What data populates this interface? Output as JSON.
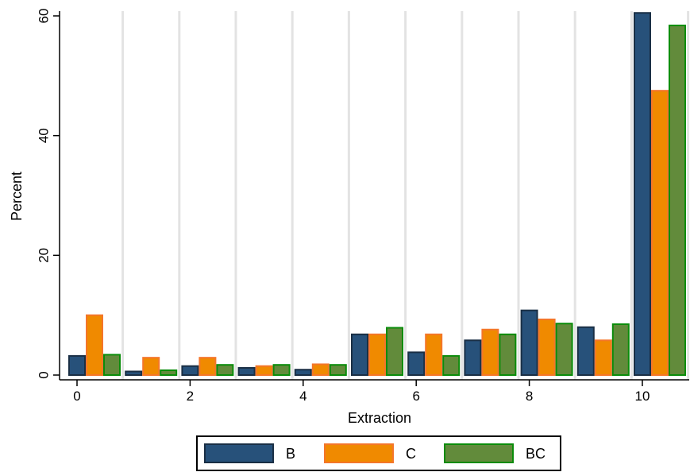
{
  "chart_data": {
    "type": "bar",
    "xlabel": "Extraction",
    "ylabel": "Percent",
    "categories": [
      "0",
      "1",
      "2",
      "3",
      "4",
      "5",
      "6",
      "7",
      "8",
      "9",
      "10"
    ],
    "x_ticks": [
      "0",
      "2",
      "4",
      "6",
      "8",
      "10"
    ],
    "y_ticks": [
      "0",
      "20",
      "40",
      "60"
    ],
    "ylim": [
      0,
      60
    ],
    "grid": true,
    "legend_position": "bottom",
    "series": [
      {
        "name": "B",
        "color": "#27517a",
        "edge": "#1a2f45",
        "values": [
          3.2,
          0.6,
          1.5,
          1.2,
          0.9,
          6.8,
          3.8,
          5.8,
          10.8,
          8.0,
          60.5
        ]
      },
      {
        "name": "C",
        "color": "#f08a00",
        "edge": "#f4762a",
        "values": [
          10.0,
          2.9,
          2.9,
          1.5,
          1.8,
          6.8,
          6.8,
          7.6,
          9.3,
          5.8,
          47.5
        ]
      },
      {
        "name": "BC",
        "color": "#628b3b",
        "edge": "#0a8c0a",
        "values": [
          3.4,
          0.8,
          1.7,
          1.7,
          1.7,
          7.9,
          3.2,
          6.8,
          8.6,
          8.5,
          58.4
        ]
      }
    ]
  }
}
